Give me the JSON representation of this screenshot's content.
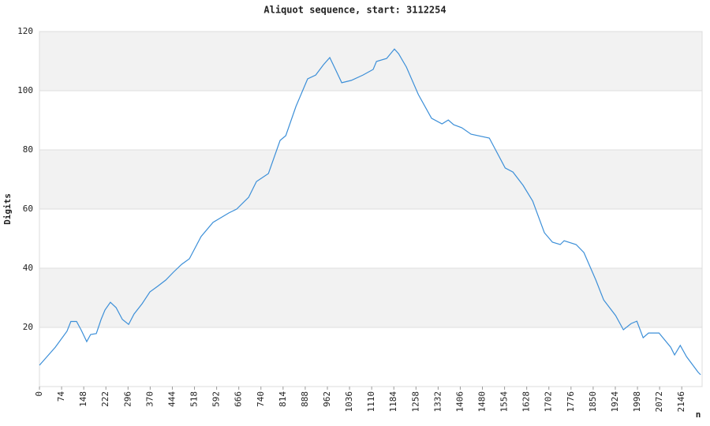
{
  "chart_data": {
    "type": "line",
    "title": "Aliquot sequence, start: 3112254",
    "y_label": "Digits",
    "x_label": "n",
    "xlim": [
      0,
      2214
    ],
    "ylim": [
      0,
      120
    ],
    "xticks": [
      0,
      74,
      148,
      222,
      296,
      370,
      444,
      518,
      592,
      666,
      740,
      814,
      888,
      962,
      1036,
      1110,
      1184,
      1258,
      1332,
      1406,
      1480,
      1554,
      1628,
      1702,
      1776,
      1850,
      1924,
      1998,
      2072,
      2146
    ],
    "yticks": [
      20,
      40,
      60,
      80,
      100,
      120
    ],
    "grid": true,
    "band_color": "#f2f2f2",
    "x": [
      0,
      53,
      92,
      105,
      124,
      140,
      158,
      171,
      190,
      206,
      219,
      237,
      256,
      277,
      298,
      316,
      343,
      369,
      395,
      422,
      448,
      475,
      501,
      540,
      580,
      633,
      659,
      699,
      725,
      765,
      804,
      823,
      857,
      896,
      923,
      949,
      970,
      989,
      1010,
      1042,
      1081,
      1115,
      1126,
      1160,
      1186,
      1200,
      1226,
      1266,
      1310,
      1345,
      1366,
      1384,
      1411,
      1442,
      1503,
      1524,
      1556,
      1582,
      1616,
      1648,
      1687,
      1714,
      1740,
      1753,
      1793,
      1819,
      1859,
      1885,
      1925,
      1951,
      1977,
      1996,
      2017,
      2035,
      2070,
      2109,
      2122,
      2141,
      2162,
      2201,
      2209
    ],
    "series": [
      {
        "name": "Digits",
        "color": "#3c8fd8",
        "values": [
          7.2,
          13.3,
          18.7,
          22,
          22,
          19,
          15.2,
          17.6,
          17.9,
          22.7,
          25.9,
          28.5,
          26.7,
          22.7,
          21,
          24.5,
          28,
          32,
          33.9,
          36,
          38.7,
          41.3,
          43.2,
          50.7,
          55.5,
          58.7,
          60,
          64,
          69.3,
          72,
          83.2,
          84.8,
          94.7,
          104,
          105.3,
          108.8,
          111.2,
          107.2,
          102.7,
          103.5,
          105.3,
          107.2,
          109.9,
          110.9,
          114.1,
          112.5,
          108,
          98.7,
          90.7,
          88.8,
          90.1,
          88.5,
          87.5,
          85.3,
          84,
          80,
          73.9,
          72.5,
          68,
          62.7,
          52,
          48.8,
          48,
          49.3,
          48,
          45.3,
          36,
          29.3,
          24,
          19.2,
          21.3,
          22.1,
          16.5,
          18.1,
          18.1,
          13.3,
          10.7,
          13.9,
          10.1,
          4.8,
          4
        ]
      }
    ]
  }
}
